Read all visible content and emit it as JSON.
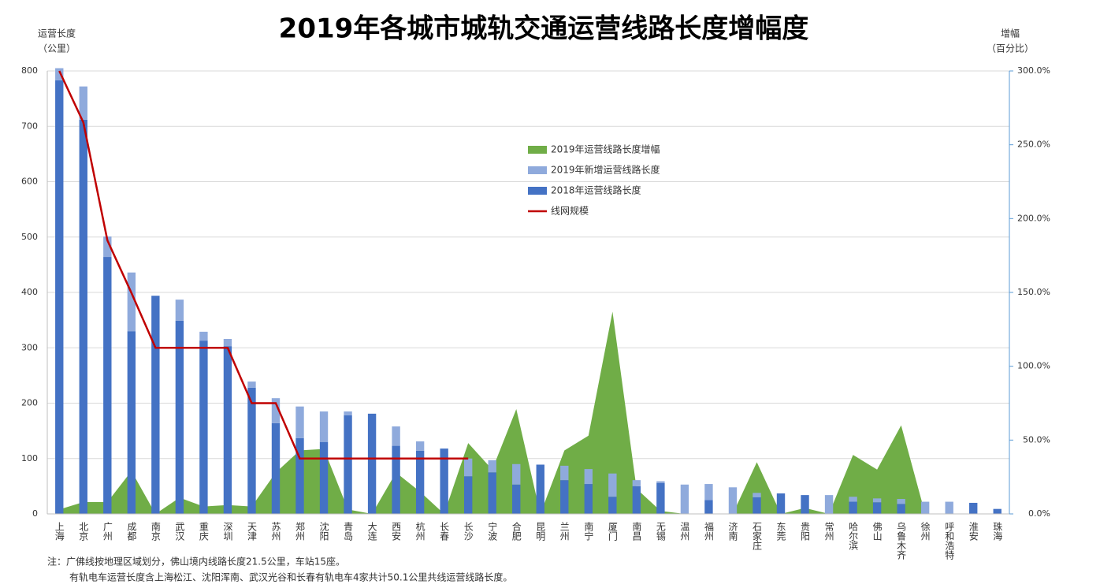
{
  "chart_data": {
    "type": "combo",
    "title": "2019年各城市城轨交通运营线路长度增幅度",
    "y_label": [
      "运营长度",
      "（公里）"
    ],
    "y2_label": [
      "增幅",
      "（百分比）"
    ],
    "categories": [
      "上海",
      "北京",
      "广州",
      "成都",
      "南京",
      "武汉",
      "重庆",
      "深圳",
      "天津",
      "苏州",
      "郑州",
      "沈阳",
      "青岛",
      "大连",
      "西安",
      "杭州",
      "长春",
      "长沙",
      "宁波",
      "合肥",
      "昆明",
      "兰州",
      "南宁",
      "厦门",
      "南昌",
      "无锡",
      "温州",
      "福州",
      "济南",
      "石家庄",
      "东莞",
      "贵阳",
      "常州",
      "哈尔滨",
      "佛山",
      "乌鲁木齐",
      "徐州",
      "呼和浩特",
      "淮安",
      "珠海"
    ],
    "series": [
      {
        "name": "2019年运营线路长度增幅",
        "type": "area",
        "axis": "y2",
        "color": "#70ad47",
        "values": [
          3,
          8,
          8,
          29,
          0,
          11,
          5,
          6,
          5,
          28,
          43,
          44,
          3,
          0,
          28,
          15,
          0,
          48,
          30,
          71,
          0,
          43,
          53,
          137,
          17,
          2,
          0,
          0,
          0,
          35,
          0,
          4,
          0,
          40,
          30,
          60,
          0,
          0,
          0,
          0
        ]
      },
      {
        "name": "2019年新增运营线路长度",
        "type": "bar",
        "color": "#8faadc",
        "values": [
          22,
          60,
          37,
          106,
          0,
          38,
          16,
          13,
          11,
          45,
          57,
          55,
          7,
          0,
          35,
          17,
          0,
          32,
          22,
          37,
          0,
          26,
          27,
          42,
          11,
          3,
          53,
          29,
          48,
          8,
          0,
          0,
          34,
          9,
          7,
          9,
          22,
          22,
          0,
          0
        ]
      },
      {
        "name": "2018年运营线路长度",
        "type": "bar",
        "color": "#4472c4",
        "values": [
          783,
          712,
          464,
          330,
          394,
          349,
          313,
          303,
          228,
          164,
          137,
          130,
          178,
          181,
          123,
          114,
          118,
          68,
          75,
          53,
          89,
          61,
          54,
          31,
          50,
          56,
          0,
          25,
          0,
          30,
          37,
          34,
          0,
          22,
          21,
          18,
          0,
          0,
          20,
          9
        ]
      },
      {
        "name": "线网规模",
        "type": "line",
        "color": "#c00000",
        "values": [
          800,
          707,
          494,
          399,
          300,
          300,
          300,
          300,
          200,
          200,
          100,
          100,
          100,
          100,
          100,
          100,
          100,
          100,
          null,
          null,
          null,
          null,
          null,
          null,
          null,
          null,
          null,
          null,
          null,
          null,
          null,
          null,
          null,
          null,
          null,
          null,
          null,
          null,
          null,
          null
        ]
      }
    ],
    "ylim": [
      0,
      800
    ],
    "yticks": [
      0,
      100,
      200,
      300,
      400,
      500,
      600,
      700,
      800
    ],
    "y2lim": [
      0,
      300
    ],
    "y2ticks": [
      {
        "value": 0,
        "label": "0.0%"
      },
      {
        "value": 50,
        "label": "50.0%"
      },
      {
        "value": 100,
        "label": "100.0%"
      },
      {
        "value": 150,
        "label": "150.0%"
      },
      {
        "value": 200,
        "label": "200.0%"
      },
      {
        "value": 250,
        "label": "250.0%"
      },
      {
        "value": 300,
        "label": "300.0%"
      }
    ],
    "grid": true,
    "notes": [
      "注：广佛线按地理区域划分，佛山境内线路长度21.5公里，车站15座。",
      "有轨电车运营长度含上海松江、沈阳浑南、武汉光谷和长春有轨电车4家共计50.1公里共线运营线路长度。"
    ]
  }
}
